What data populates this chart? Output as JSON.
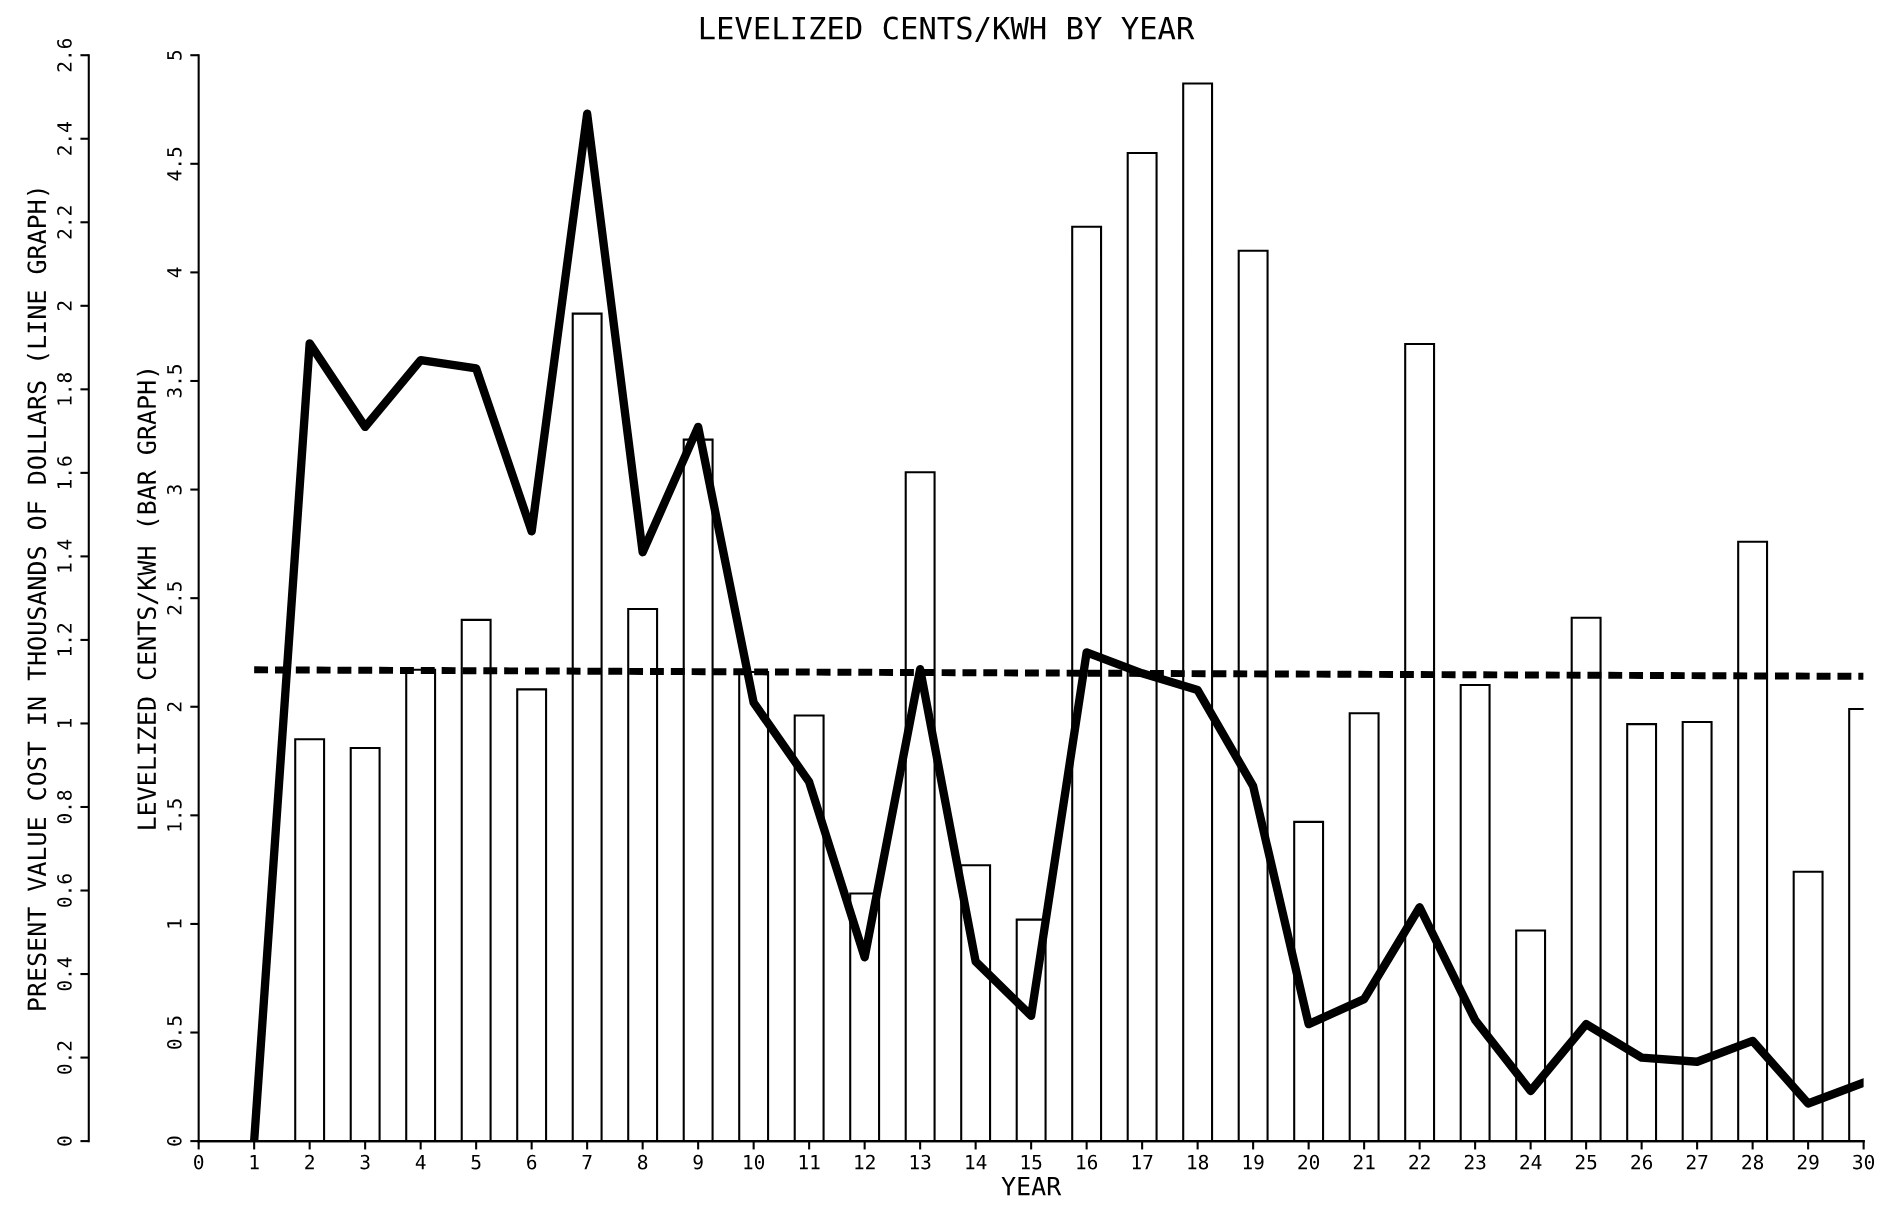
{
  "chart_data": {
    "type": "bar",
    "title": "LEVELIZED CENTS/KWH BY YEAR",
    "xlabel": "YEAR",
    "ylabel": "LEVELIZED CENTS/KWH (BAR GRAPH)",
    "y2label": "PRESENT VALUE COST IN THOUSANDS OF DOLLARS (LINE GRAPH)",
    "xlim": [
      0,
      30
    ],
    "xticks": [
      0,
      1,
      2,
      3,
      4,
      5,
      6,
      7,
      8,
      9,
      10,
      11,
      12,
      13,
      14,
      15,
      16,
      17,
      18,
      19,
      20,
      21,
      22,
      23,
      24,
      25,
      26,
      27,
      28,
      29,
      30
    ],
    "ylim": [
      0,
      5
    ],
    "yticks": [
      0,
      0.5,
      1,
      1.5,
      2,
      2.5,
      3,
      3.5,
      4,
      4.5,
      5
    ],
    "y2lim": [
      0,
      2.6
    ],
    "y2ticks": [
      0,
      0.2,
      0.4,
      0.6,
      0.8,
      1,
      1.2,
      1.4,
      1.6,
      1.8,
      2,
      2.2,
      2.4,
      2.6
    ],
    "grid": false,
    "series": [
      {
        "color": "#ffffff",
        "x": [
          2,
          3,
          4,
          5,
          6,
          7,
          8,
          9,
          10,
          11,
          12,
          13,
          14,
          15,
          16,
          17,
          18,
          19,
          20,
          21,
          22,
          23,
          24,
          25,
          26,
          27,
          28,
          29,
          30
        ],
        "values": [
          1.85,
          1.81,
          2.17,
          2.4,
          2.08,
          3.81,
          2.45,
          3.23,
          2.16,
          1.96,
          1.14,
          3.08,
          1.27,
          1.02,
          4.21,
          4.55,
          4.87,
          4.1,
          1.47,
          1.97,
          3.67,
          2.1,
          0.97,
          2.41,
          1.92,
          1.93,
          2.76,
          1.24,
          1.99
        ]
      },
      {
        "type": "line",
        "color": "#000000",
        "line_style": "dashed",
        "x": [
          1,
          30
        ],
        "values": [
          2.17,
          2.14
        ]
      },
      {
        "type": "line",
        "color": "#000000",
        "line_style": "solid",
        "axis": "y2",
        "x": [
          1,
          2,
          3,
          4,
          5,
          6,
          7,
          8,
          9,
          10,
          11,
          12,
          13,
          14,
          15,
          16,
          17,
          18,
          19,
          20,
          21,
          22,
          23,
          24,
          25,
          26,
          27,
          28,
          29,
          30
        ],
        "values": [
          0,
          1.91,
          1.71,
          1.87,
          1.85,
          1.46,
          2.46,
          1.41,
          1.71,
          1.05,
          0.86,
          0.44,
          1.13,
          0.43,
          0.3,
          1.17,
          1.12,
          1.08,
          0.85,
          0.28,
          0.34,
          0.56,
          0.29,
          0.12,
          0.28,
          0.2,
          0.19,
          0.24,
          0.09,
          0.14
        ]
      }
    ]
  }
}
